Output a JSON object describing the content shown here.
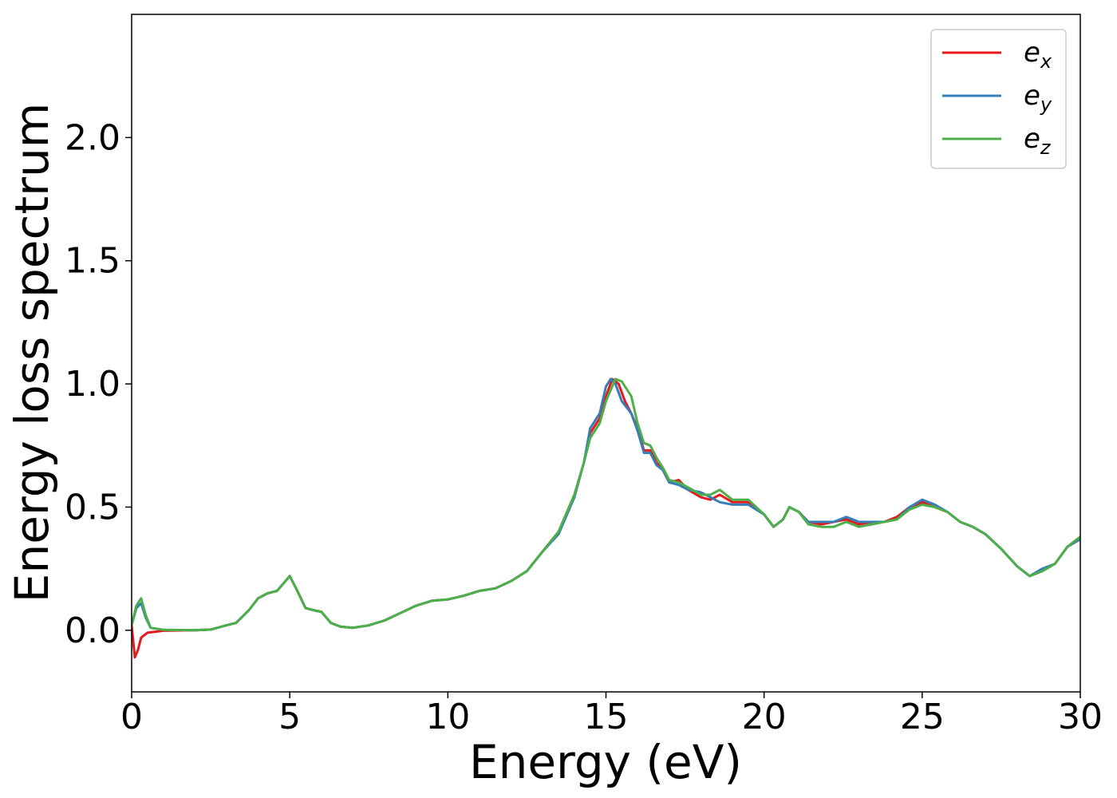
{
  "chart_data": {
    "type": "line",
    "xlabel": "Energy (eV)",
    "ylabel": "Energy loss spectrum",
    "xlim": [
      0,
      30
    ],
    "ylim": [
      -0.25,
      2.5
    ],
    "xticks": [
      0,
      5,
      10,
      15,
      20,
      25,
      30
    ],
    "xtick_labels": [
      "0",
      "5",
      "10",
      "15",
      "20",
      "25",
      "30"
    ],
    "yticks": [
      0.0,
      0.5,
      1.0,
      1.5,
      2.0
    ],
    "ytick_labels": [
      "0.0",
      "0.5",
      "1.0",
      "1.5",
      "2.0"
    ],
    "grid": false,
    "legend_position": "top-right",
    "series": [
      {
        "name": "e",
        "name_sub": "x",
        "color": "#e41a1c",
        "points": [
          [
            0,
            0.02
          ],
          [
            0.1,
            -0.11
          ],
          [
            0.2,
            -0.08
          ],
          [
            0.3,
            -0.03
          ],
          [
            0.5,
            -0.01
          ],
          [
            1.0,
            -0.002
          ],
          [
            2.0,
            0.0
          ],
          [
            2.5,
            0.003
          ],
          [
            3.0,
            0.02
          ],
          [
            3.3,
            0.03
          ],
          [
            3.7,
            0.08
          ],
          [
            4.0,
            0.13
          ],
          [
            4.3,
            0.15
          ],
          [
            4.6,
            0.16
          ],
          [
            4.8,
            0.19
          ],
          [
            5.0,
            0.22
          ],
          [
            5.2,
            0.17
          ],
          [
            5.5,
            0.09
          ],
          [
            5.8,
            0.08
          ],
          [
            6.0,
            0.075
          ],
          [
            6.3,
            0.03
          ],
          [
            6.6,
            0.015
          ],
          [
            7.0,
            0.01
          ],
          [
            7.5,
            0.02
          ],
          [
            8.0,
            0.04
          ],
          [
            8.5,
            0.07
          ],
          [
            9.0,
            0.1
          ],
          [
            9.5,
            0.12
          ],
          [
            10.0,
            0.125
          ],
          [
            10.5,
            0.14
          ],
          [
            11.0,
            0.16
          ],
          [
            11.5,
            0.17
          ],
          [
            12.0,
            0.2
          ],
          [
            12.5,
            0.24
          ],
          [
            13.0,
            0.32
          ],
          [
            13.5,
            0.4
          ],
          [
            14.0,
            0.55
          ],
          [
            14.3,
            0.68
          ],
          [
            14.5,
            0.8
          ],
          [
            14.8,
            0.86
          ],
          [
            15.0,
            0.95
          ],
          [
            15.2,
            1.02
          ],
          [
            15.4,
            1.0
          ],
          [
            15.6,
            0.93
          ],
          [
            15.8,
            0.88
          ],
          [
            16.0,
            0.82
          ],
          [
            16.2,
            0.73
          ],
          [
            16.4,
            0.73
          ],
          [
            16.6,
            0.68
          ],
          [
            16.8,
            0.65
          ],
          [
            17.0,
            0.6
          ],
          [
            17.3,
            0.61
          ],
          [
            17.6,
            0.57
          ],
          [
            18.0,
            0.54
          ],
          [
            18.3,
            0.53
          ],
          [
            18.6,
            0.55
          ],
          [
            19.0,
            0.52
          ],
          [
            19.5,
            0.52
          ],
          [
            20.0,
            0.47
          ],
          [
            20.3,
            0.42
          ],
          [
            20.6,
            0.45
          ],
          [
            20.8,
            0.5
          ],
          [
            21.1,
            0.48
          ],
          [
            21.4,
            0.44
          ],
          [
            21.8,
            0.43
          ],
          [
            22.2,
            0.44
          ],
          [
            22.6,
            0.45
          ],
          [
            23.0,
            0.43
          ],
          [
            23.4,
            0.44
          ],
          [
            23.8,
            0.44
          ],
          [
            24.2,
            0.46
          ],
          [
            24.6,
            0.5
          ],
          [
            25.0,
            0.52
          ],
          [
            25.4,
            0.5
          ],
          [
            25.8,
            0.48
          ],
          [
            26.2,
            0.44
          ],
          [
            26.6,
            0.42
          ],
          [
            27.0,
            0.39
          ],
          [
            27.5,
            0.33
          ],
          [
            28.0,
            0.26
          ],
          [
            28.4,
            0.22
          ],
          [
            28.8,
            0.24
          ],
          [
            29.2,
            0.27
          ],
          [
            29.6,
            0.34
          ],
          [
            30.0,
            0.37
          ]
        ]
      },
      {
        "name": "e",
        "name_sub": "y",
        "color": "#377eb8",
        "points": [
          [
            0,
            0.02
          ],
          [
            0.15,
            0.09
          ],
          [
            0.3,
            0.11
          ],
          [
            0.45,
            0.05
          ],
          [
            0.6,
            0.01
          ],
          [
            1.0,
            0.002
          ],
          [
            2.0,
            0.0
          ],
          [
            2.5,
            0.003
          ],
          [
            3.0,
            0.02
          ],
          [
            3.3,
            0.03
          ],
          [
            3.7,
            0.08
          ],
          [
            4.0,
            0.13
          ],
          [
            4.3,
            0.15
          ],
          [
            4.6,
            0.16
          ],
          [
            4.8,
            0.19
          ],
          [
            5.0,
            0.22
          ],
          [
            5.2,
            0.17
          ],
          [
            5.5,
            0.09
          ],
          [
            5.8,
            0.08
          ],
          [
            6.0,
            0.075
          ],
          [
            6.3,
            0.03
          ],
          [
            6.6,
            0.015
          ],
          [
            7.0,
            0.01
          ],
          [
            7.5,
            0.02
          ],
          [
            8.0,
            0.04
          ],
          [
            8.5,
            0.07
          ],
          [
            9.0,
            0.1
          ],
          [
            9.5,
            0.12
          ],
          [
            10.0,
            0.125
          ],
          [
            10.5,
            0.14
          ],
          [
            11.0,
            0.16
          ],
          [
            11.5,
            0.17
          ],
          [
            12.0,
            0.2
          ],
          [
            12.5,
            0.24
          ],
          [
            13.0,
            0.32
          ],
          [
            13.5,
            0.39
          ],
          [
            14.0,
            0.54
          ],
          [
            14.3,
            0.68
          ],
          [
            14.5,
            0.82
          ],
          [
            14.8,
            0.88
          ],
          [
            15.0,
            0.99
          ],
          [
            15.15,
            1.02
          ],
          [
            15.3,
            1.0
          ],
          [
            15.5,
            0.93
          ],
          [
            15.8,
            0.88
          ],
          [
            16.0,
            0.81
          ],
          [
            16.2,
            0.72
          ],
          [
            16.4,
            0.72
          ],
          [
            16.6,
            0.67
          ],
          [
            16.8,
            0.65
          ],
          [
            17.0,
            0.6
          ],
          [
            17.3,
            0.59
          ],
          [
            17.6,
            0.57
          ],
          [
            18.0,
            0.56
          ],
          [
            18.3,
            0.54
          ],
          [
            18.6,
            0.52
          ],
          [
            19.0,
            0.51
          ],
          [
            19.5,
            0.51
          ],
          [
            20.0,
            0.47
          ],
          [
            20.3,
            0.42
          ],
          [
            20.6,
            0.45
          ],
          [
            20.8,
            0.5
          ],
          [
            21.1,
            0.48
          ],
          [
            21.4,
            0.44
          ],
          [
            21.8,
            0.44
          ],
          [
            22.2,
            0.44
          ],
          [
            22.6,
            0.46
          ],
          [
            23.0,
            0.44
          ],
          [
            23.4,
            0.44
          ],
          [
            23.8,
            0.44
          ],
          [
            24.2,
            0.45
          ],
          [
            24.6,
            0.5
          ],
          [
            25.0,
            0.53
          ],
          [
            25.4,
            0.51
          ],
          [
            25.8,
            0.48
          ],
          [
            26.2,
            0.44
          ],
          [
            26.6,
            0.42
          ],
          [
            27.0,
            0.39
          ],
          [
            27.5,
            0.33
          ],
          [
            28.0,
            0.26
          ],
          [
            28.4,
            0.22
          ],
          [
            28.8,
            0.25
          ],
          [
            29.2,
            0.27
          ],
          [
            29.6,
            0.34
          ],
          [
            30.0,
            0.37
          ]
        ]
      },
      {
        "name": "e",
        "name_sub": "z",
        "color": "#4daf4a",
        "points": [
          [
            0,
            0.02
          ],
          [
            0.15,
            0.1
          ],
          [
            0.3,
            0.13
          ],
          [
            0.45,
            0.06
          ],
          [
            0.6,
            0.01
          ],
          [
            1.0,
            0.002
          ],
          [
            2.0,
            0.0
          ],
          [
            2.5,
            0.003
          ],
          [
            3.0,
            0.02
          ],
          [
            3.3,
            0.03
          ],
          [
            3.7,
            0.08
          ],
          [
            4.0,
            0.13
          ],
          [
            4.3,
            0.15
          ],
          [
            4.6,
            0.16
          ],
          [
            4.8,
            0.19
          ],
          [
            5.0,
            0.22
          ],
          [
            5.2,
            0.17
          ],
          [
            5.5,
            0.09
          ],
          [
            5.8,
            0.08
          ],
          [
            6.0,
            0.075
          ],
          [
            6.3,
            0.03
          ],
          [
            6.6,
            0.015
          ],
          [
            7.0,
            0.01
          ],
          [
            7.5,
            0.02
          ],
          [
            8.0,
            0.04
          ],
          [
            8.5,
            0.07
          ],
          [
            9.0,
            0.1
          ],
          [
            9.5,
            0.12
          ],
          [
            10.0,
            0.125
          ],
          [
            10.5,
            0.14
          ],
          [
            11.0,
            0.16
          ],
          [
            11.5,
            0.17
          ],
          [
            12.0,
            0.2
          ],
          [
            12.5,
            0.24
          ],
          [
            13.0,
            0.32
          ],
          [
            13.5,
            0.4
          ],
          [
            14.0,
            0.55
          ],
          [
            14.3,
            0.68
          ],
          [
            14.5,
            0.78
          ],
          [
            14.8,
            0.84
          ],
          [
            15.0,
            0.93
          ],
          [
            15.3,
            1.02
          ],
          [
            15.5,
            1.01
          ],
          [
            15.8,
            0.95
          ],
          [
            16.0,
            0.84
          ],
          [
            16.2,
            0.76
          ],
          [
            16.4,
            0.75
          ],
          [
            16.6,
            0.7
          ],
          [
            16.8,
            0.66
          ],
          [
            17.0,
            0.61
          ],
          [
            17.3,
            0.6
          ],
          [
            17.6,
            0.58
          ],
          [
            18.0,
            0.55
          ],
          [
            18.3,
            0.55
          ],
          [
            18.6,
            0.57
          ],
          [
            19.0,
            0.53
          ],
          [
            19.5,
            0.53
          ],
          [
            20.0,
            0.47
          ],
          [
            20.3,
            0.42
          ],
          [
            20.6,
            0.45
          ],
          [
            20.8,
            0.5
          ],
          [
            21.1,
            0.48
          ],
          [
            21.4,
            0.43
          ],
          [
            21.8,
            0.42
          ],
          [
            22.2,
            0.42
          ],
          [
            22.6,
            0.44
          ],
          [
            23.0,
            0.42
          ],
          [
            23.4,
            0.43
          ],
          [
            23.8,
            0.44
          ],
          [
            24.2,
            0.45
          ],
          [
            24.6,
            0.49
          ],
          [
            25.0,
            0.51
          ],
          [
            25.4,
            0.5
          ],
          [
            25.8,
            0.48
          ],
          [
            26.2,
            0.44
          ],
          [
            26.6,
            0.42
          ],
          [
            27.0,
            0.39
          ],
          [
            27.5,
            0.33
          ],
          [
            28.0,
            0.26
          ],
          [
            28.4,
            0.22
          ],
          [
            28.8,
            0.24
          ],
          [
            29.2,
            0.27
          ],
          [
            29.6,
            0.34
          ],
          [
            30.0,
            0.38
          ]
        ]
      }
    ]
  }
}
